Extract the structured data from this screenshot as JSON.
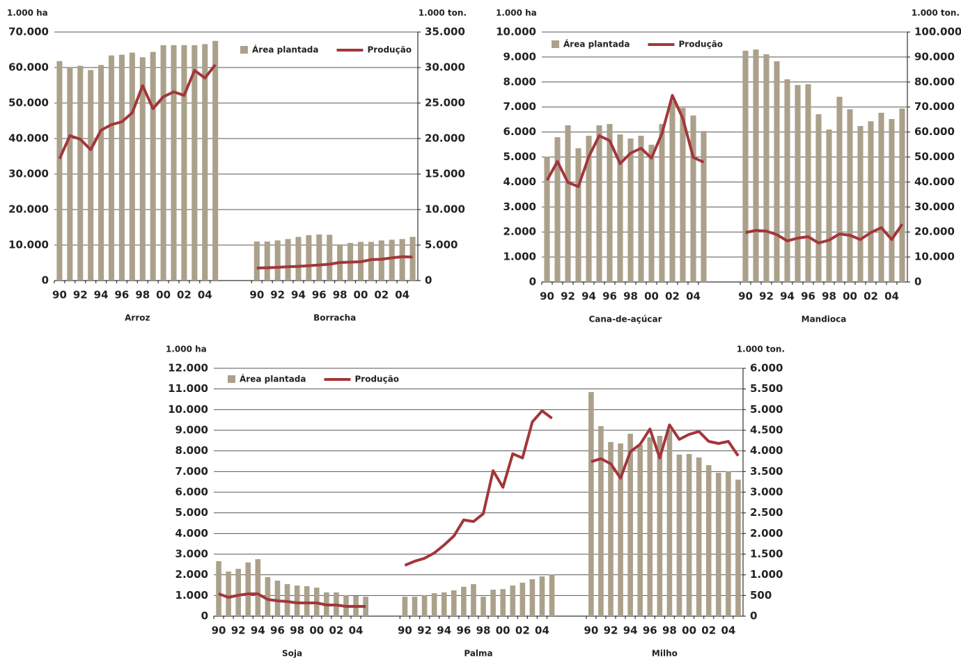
{
  "chart_data": [
    {
      "type": "combo",
      "y_label": "1.000 ha",
      "y2_label": "1.000 ton.",
      "ylim": [
        0,
        70000
      ],
      "yticks": [
        0,
        {
          "value": 10000,
          "label": "10.000"
        },
        {
          "value": 20000,
          "label": "20.000"
        },
        {
          "value": 30000,
          "label": "30.000"
        },
        {
          "value": 40000,
          "label": "40.000"
        },
        {
          "value": 50000,
          "label": "50.000"
        },
        {
          "value": 60000,
          "label": "60.000"
        },
        {
          "value": 70000,
          "label": "70.000"
        }
      ],
      "y2lim": [
        0,
        35000
      ],
      "y2ticks": [
        0,
        {
          "value": 5000,
          "label": "5.000"
        },
        {
          "value": 10000,
          "label": "10.000"
        },
        {
          "value": 15000,
          "label": "15.000"
        },
        {
          "value": 20000,
          "label": "20.000"
        },
        {
          "value": 25000,
          "label": "25.000"
        },
        {
          "value": 30000,
          "label": "30.000"
        },
        {
          "value": 35000,
          "label": "35.000"
        }
      ],
      "grid": true,
      "categories": [
        "90",
        null,
        "92",
        null,
        "94",
        null,
        "96",
        null,
        "98",
        null,
        "00",
        null,
        "02",
        null,
        "04",
        null
      ],
      "series": [
        {
          "name": "Área plantada",
          "color": "#aba08a",
          "type": "bar"
        },
        {
          "name": "Produção",
          "color": "#a3363a",
          "type": "line",
          "axis": "y2"
        }
      ],
      "groups": [
        {
          "name": "Arroz",
          "values": [
            [
              61800,
              59800,
              60500,
              59300,
              60700,
              63400,
              63600,
              64200,
              62900,
              64400,
              66300,
              66300,
              66300,
              66300,
              66600,
              67500
            ],
            [
              17150,
              20400,
              19900,
              18430,
              21180,
              21960,
              22350,
              23630,
              27450,
              24220,
              25880,
              26570,
              26080,
              29600,
              28530,
              30390
            ]
          ]
        },
        {
          "name": "Borracha",
          "values": [
            [
              11000,
              11000,
              11300,
              11700,
              12300,
              12800,
              13000,
              12900,
              10200,
              10600,
              10900,
              10900,
              11300,
              11500,
              11700,
              12300
            ],
            [
              1760,
              1800,
              1860,
              1950,
              2000,
              2100,
              2200,
              2300,
              2550,
              2600,
              2650,
              2950,
              3000,
              3200,
              3350,
              3300
            ]
          ]
        }
      ]
    },
    {
      "type": "combo",
      "y_label": "1.000 ha",
      "y2_label": "1.000 ton.",
      "ylim": [
        0,
        10000
      ],
      "yticks": [
        0,
        {
          "value": 1000,
          "label": "1.000"
        },
        {
          "value": 2000,
          "label": "2.000"
        },
        {
          "value": 3000,
          "label": "3.000"
        },
        {
          "value": 4000,
          "label": "4.000"
        },
        {
          "value": 5000,
          "label": "5.000"
        },
        {
          "value": 6000,
          "label": "6.000"
        },
        {
          "value": 7000,
          "label": "7.000"
        },
        {
          "value": 8000,
          "label": "8.000"
        },
        {
          "value": 9000,
          "label": "9.000"
        },
        {
          "value": 10000,
          "label": "10.000"
        }
      ],
      "y2lim": [
        0,
        100000
      ],
      "y2ticks": [
        0,
        {
          "value": 10000,
          "label": "10.000"
        },
        {
          "value": 20000,
          "label": "20.000"
        },
        {
          "value": 30000,
          "label": "30.000"
        },
        {
          "value": 40000,
          "label": "40.000"
        },
        {
          "value": 50000,
          "label": "50.000"
        },
        {
          "value": 60000,
          "label": "60.000"
        },
        {
          "value": 70000,
          "label": "70.000"
        },
        {
          "value": 80000,
          "label": "80.000"
        },
        {
          "value": 90000,
          "label": "90.000"
        },
        {
          "value": 100000,
          "label": "100.000"
        }
      ],
      "grid": true,
      "categories": [
        "90",
        null,
        "92",
        null,
        "94",
        null,
        "96",
        null,
        "98",
        null,
        "00",
        null,
        "02",
        null,
        "04",
        null
      ],
      "series": [
        {
          "name": "Área plantada",
          "color": "#aba08a",
          "type": "bar"
        },
        {
          "name": "Produção",
          "color": "#a3363a",
          "type": "line",
          "axis": "y2"
        }
      ],
      "groups": [
        {
          "name": "Cana-de-açúcar",
          "values": [
            [
              5010,
              5790,
              6270,
              5350,
              5850,
              6270,
              6320,
              5900,
              5740,
              5850,
              5490,
              6320,
              7240,
              6960,
              6660,
              6040
            ],
            [
              40670,
              48190,
              39830,
              38160,
              50140,
              58500,
              56550,
              47350,
              51530,
              53480,
              49580,
              59330,
              74650,
              65460,
              49860,
              47910
            ]
          ]
        },
        {
          "name": "Mandioca",
          "values": [
            [
              9250,
              9300,
              9110,
              8830,
              8110,
              7880,
              7910,
              6710,
              6100,
              7410,
              6910,
              6240,
              6430,
              6770,
              6520,
              6940
            ],
            [
              19780,
              20610,
              20330,
              18940,
              16430,
              17550,
              18110,
              15600,
              16710,
              19220,
              18660,
              16990,
              19780,
              21730,
              16990,
              23120
            ]
          ]
        }
      ]
    },
    {
      "type": "combo",
      "y_label": "1.000 ha",
      "y2_label": "1.000 ton.",
      "ylim": [
        0,
        12000
      ],
      "yticks": [
        0,
        {
          "value": 1000,
          "label": "1.000"
        },
        {
          "value": 2000,
          "label": "2.000"
        },
        {
          "value": 3000,
          "label": "3.000"
        },
        {
          "value": 4000,
          "label": "4.000"
        },
        {
          "value": 5000,
          "label": "5.000"
        },
        {
          "value": 6000,
          "label": "6.000"
        },
        {
          "value": 7000,
          "label": "7.000"
        },
        {
          "value": 8000,
          "label": "8.000"
        },
        {
          "value": 9000,
          "label": "9.000"
        },
        {
          "value": 10000,
          "label": "10.000"
        },
        {
          "value": 11000,
          "label": "11.000"
        },
        {
          "value": 12000,
          "label": "12.000"
        }
      ],
      "y2lim": [
        0,
        6000
      ],
      "y2ticks": [
        0,
        500,
        {
          "value": 1000,
          "label": "1.000"
        },
        {
          "value": 1500,
          "label": "1.500"
        },
        {
          "value": 2000,
          "label": "2.000"
        },
        {
          "value": 2500,
          "label": "2.500"
        },
        {
          "value": 3000,
          "label": "3.000"
        },
        {
          "value": 3500,
          "label": "3.500"
        },
        {
          "value": 4000,
          "label": "4.000"
        },
        {
          "value": 4500,
          "label": "4.500"
        },
        {
          "value": 5000,
          "label": "5.000"
        },
        {
          "value": 5500,
          "label": "5.500"
        },
        {
          "value": 6000,
          "label": "6.000"
        }
      ],
      "grid": true,
      "categories": [
        "90",
        null,
        "92",
        null,
        "94",
        null,
        "96",
        null,
        "98",
        null,
        "00",
        null,
        "02",
        null,
        "04",
        null
      ],
      "series": [
        {
          "name": "Área plantada",
          "color": "#aba08a",
          "type": "bar"
        },
        {
          "name": "Produção",
          "color": "#a3363a",
          "type": "line",
          "axis": "y2"
        }
      ],
      "groups": [
        {
          "name": "Soja",
          "values": [
            [
              2660,
              2160,
              2290,
              2600,
              2760,
              1890,
              1720,
              1550,
              1480,
              1450,
              1380,
              1150,
              1150,
              1010,
              980,
              940
            ],
            [
              539,
              455,
              506,
              539,
              539,
              404,
              371,
              354,
              320,
              320,
              320,
              270,
              270,
              236,
              236,
              236
            ]
          ]
        },
        {
          "name": "Palma",
          "values": [
            [
              940,
              940,
              1010,
              1110,
              1150,
              1250,
              1420,
              1550,
              940,
              1280,
              1310,
              1480,
              1620,
              1790,
              1920,
              2020
            ],
            [
              1230,
              1330,
              1400,
              1530,
              1720,
              1940,
              2330,
              2290,
              2480,
              3520,
              3120,
              3930,
              3830,
              4700,
              4970,
              4790
            ]
          ]
        },
        {
          "name": "Milho",
          "values": [
            [
              10850,
              9200,
              8430,
              8360,
              8830,
              8290,
              8660,
              8730,
              9000,
              7820,
              7850,
              7680,
              7310,
              6940,
              7010,
              6610
            ],
            [
              3740,
              3810,
              3690,
              3340,
              3980,
              4160,
              4530,
              3830,
              4630,
              4280,
              4400,
              4470,
              4230,
              4180,
              4230,
              3880
            ]
          ]
        }
      ]
    }
  ]
}
